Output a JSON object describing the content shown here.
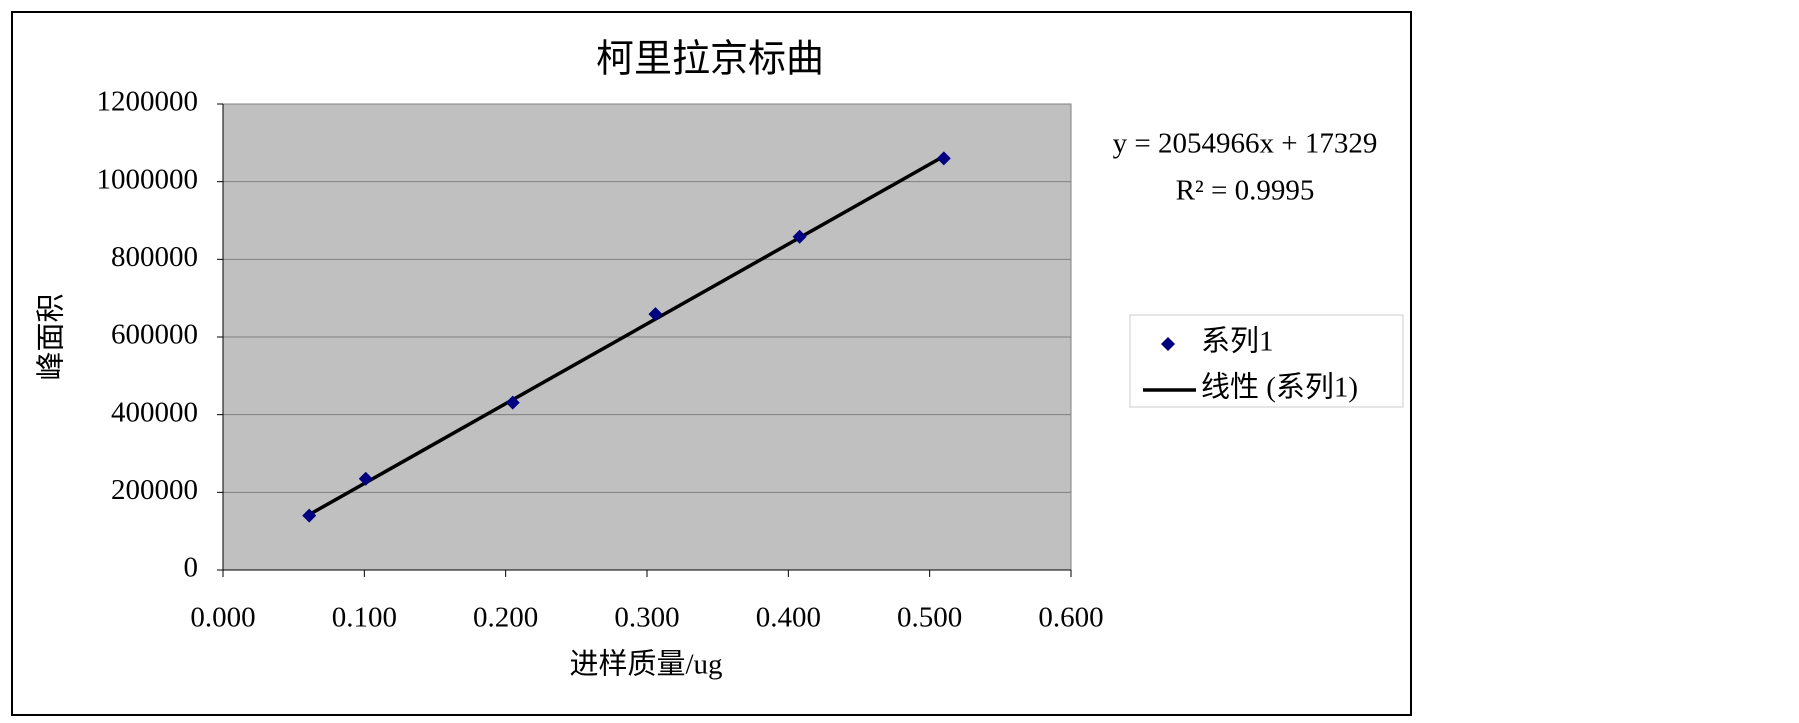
{
  "chart_data": {
    "type": "scatter",
    "title": "柯里拉京标曲",
    "x_label": "进样质量/ug",
    "y_label": "峰面积",
    "series": [
      {
        "name": "系列1",
        "color": "#000080",
        "x": [
          0.061,
          0.101,
          0.205,
          0.306,
          0.408,
          0.51
        ],
        "values": [
          140000,
          235000,
          431000,
          659000,
          858000,
          1060000
        ]
      }
    ],
    "trendline": {
      "name": "线性 (系列1)",
      "color": "#000000",
      "slope": 2054966,
      "intercept": 17329,
      "equation": "y = 2054966x + 17329",
      "r2_label": "R² = 0.9995"
    },
    "xlim": [
      0,
      0.6
    ],
    "xticks": [
      {
        "value": 0,
        "label": "0.000"
      },
      {
        "value": 0.1,
        "label": "0.100"
      },
      {
        "value": 0.2,
        "label": "0.200"
      },
      {
        "value": 0.3,
        "label": "0.300"
      },
      {
        "value": 0.4,
        "label": "0.400"
      },
      {
        "value": 0.5,
        "label": "0.500"
      },
      {
        "value": 0.6,
        "label": "0.600"
      }
    ],
    "ylim": [
      0,
      1200000
    ],
    "yticks": [
      0,
      200000,
      400000,
      600000,
      800000,
      1000000,
      1200000
    ],
    "grid": true,
    "legend": "right"
  }
}
